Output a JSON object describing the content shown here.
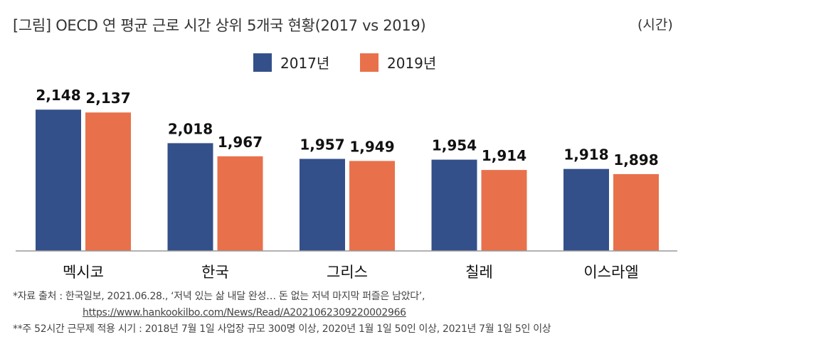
{
  "header": {
    "title": "[그림] OECD 연 평균 근로 시간 상위 5개국 현황(2017 vs 2019)",
    "unit": "(시간)"
  },
  "colors": {
    "series_2017": "#34508a",
    "series_2019": "#e8714b",
    "axis": "#999999"
  },
  "chart_data": {
    "type": "bar",
    "categories": [
      "멕시코",
      "한국",
      "그리스",
      "칠레",
      "이스라엘"
    ],
    "series": [
      {
        "name": "2017년",
        "values": [
          2148,
          2018,
          1957,
          1954,
          1918
        ]
      },
      {
        "name": "2019년",
        "values": [
          2137,
          1967,
          1949,
          1914,
          1898
        ]
      }
    ],
    "value_labels": [
      [
        "2,148",
        "2,018",
        "1,957",
        "1,954",
        "1,918"
      ],
      [
        "2,137",
        "1,967",
        "1,949",
        "1,914",
        "1,898"
      ]
    ],
    "title": "[그림] OECD 연 평균 근로 시간 상위 5개국 현황(2017 vs 2019)",
    "ylabel": "",
    "xlabel": "",
    "ylim": [
      1600,
      2200
    ],
    "legend_position": "top-center",
    "grid": false
  },
  "notes": {
    "source": "*자료 출처 :  한국일보, 2021.06.28., ‘저녁 있는 삶 내달 완성… 돈 없는 저녁 마지막 퍼즐은 남았다’,",
    "url": "https://www.hankookilbo.com/News/Read/A2021062309220002966",
    "footnote": "**주 52시간 근무제 적용 시기 : 2018년 7월 1일 사업장 규모 300명 이상, 2020년 1월 1일 50인 이상, 2021년 7월 1일 5인 이상"
  }
}
